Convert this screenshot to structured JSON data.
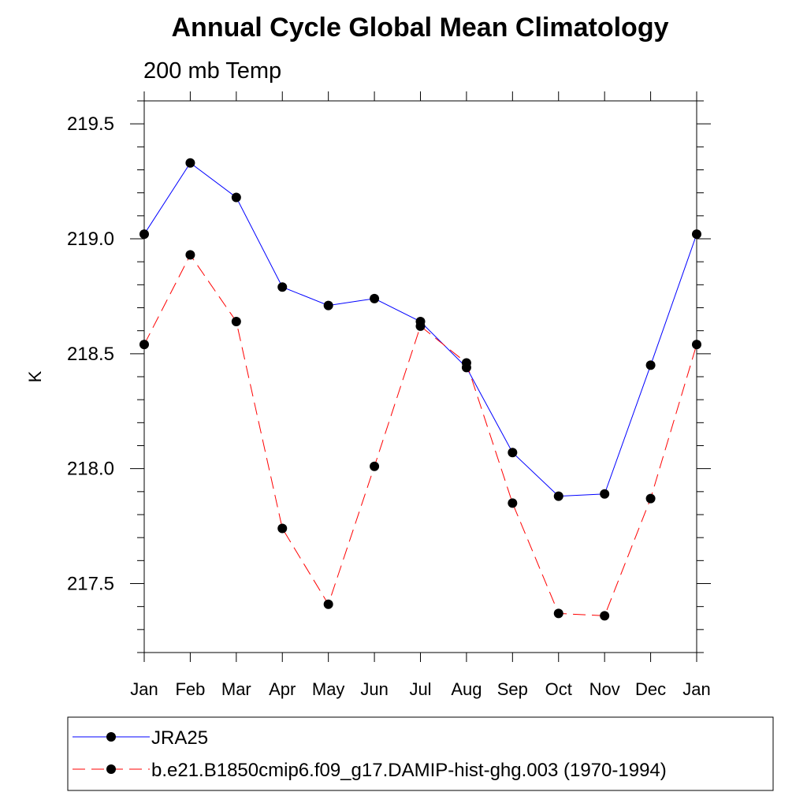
{
  "chart_data": {
    "type": "line",
    "title": "Annual Cycle Global Mean Climatology",
    "subtitle": "200 mb Temp",
    "xlabel": "",
    "ylabel": "K",
    "categories": [
      "Jan",
      "Feb",
      "Mar",
      "Apr",
      "May",
      "Jun",
      "Jul",
      "Aug",
      "Sep",
      "Oct",
      "Nov",
      "Dec",
      "Jan"
    ],
    "ylim": [
      217.2,
      219.6
    ],
    "yticks": [
      217.5,
      218.0,
      218.5,
      219.0,
      219.5
    ],
    "ytick_labels": [
      "217.5",
      "218.0",
      "218.5",
      "219.0",
      "219.5"
    ],
    "grid": false,
    "legend_position": "bottom",
    "series": [
      {
        "name": "JRA25",
        "color": "#0000ff",
        "dash": "solid",
        "values": [
          219.02,
          219.33,
          219.18,
          218.79,
          218.71,
          218.74,
          218.64,
          218.44,
          218.07,
          217.88,
          217.89,
          218.45,
          219.02
        ]
      },
      {
        "name": "b.e21.B1850cmip6.f09_g17.DAMIP-hist-ghg.003 (1970-1994)",
        "color": "#ff0000",
        "dash": "dashed",
        "values": [
          218.54,
          218.93,
          218.64,
          217.74,
          217.41,
          218.01,
          218.62,
          218.46,
          217.85,
          217.37,
          217.36,
          217.87,
          218.54
        ]
      }
    ]
  }
}
